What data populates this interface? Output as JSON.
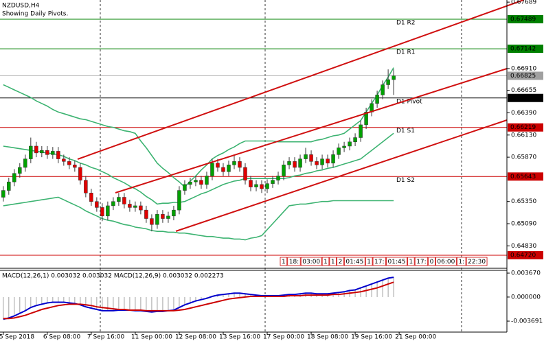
{
  "header": {
    "symbol": "NZDUSD,H4",
    "note": "Showing Daily Pivots."
  },
  "chart_data": [
    {
      "type": "candlestick",
      "xlim": [
        -0.6,
        91.6
      ],
      "ylim": [
        0.64575,
        0.67714
      ],
      "yticks": [
        0.67689,
        {
          "value": 0.6691,
          "label": "0.66910"
        },
        0.66655,
        {
          "value": 0.6639,
          "label": "0.66390"
        },
        {
          "value": 0.6613,
          "label": "0.66130"
        },
        {
          "value": 0.6587,
          "label": "0.65870"
        },
        {
          "value": 0.6535,
          "label": "0.65350"
        },
        {
          "value": 0.6509,
          "label": "0.65090"
        },
        {
          "value": 0.6483,
          "label": "0.64830"
        }
      ],
      "xticks": [
        {
          "value": 0,
          "label": "5 Sep 2018"
        },
        {
          "value": 8,
          "label": "6 Sep 08:00"
        },
        {
          "value": 16,
          "label": "7 Sep 16:00"
        },
        {
          "value": 24,
          "label": "11 Sep 00:00"
        },
        {
          "value": 32,
          "label": "12 Sep 08:00"
        },
        {
          "value": 40,
          "label": "13 Sep 16:00"
        },
        {
          "value": 48,
          "label": "17 Sep 00:00"
        },
        {
          "value": 56,
          "label": "18 Sep 08:00"
        },
        {
          "value": 64,
          "label": "19 Sep 16:00"
        },
        {
          "value": 72,
          "label": "21 Sep 00:00"
        }
      ],
      "up_color": "#00a000",
      "down_color": "#e00000",
      "wick_color": "#333333",
      "open": [
        0.654,
        0.6548,
        0.6558,
        0.6568,
        0.6575,
        0.6585,
        0.66,
        0.6592,
        0.6595,
        0.659,
        0.6594,
        0.6585,
        0.6582,
        0.6578,
        0.6575,
        0.656,
        0.6545,
        0.6535,
        0.6528,
        0.6518,
        0.653,
        0.6535,
        0.654,
        0.6532,
        0.6528,
        0.653,
        0.6525,
        0.6515,
        0.6508,
        0.652,
        0.6515,
        0.6518,
        0.6525,
        0.6548,
        0.6555,
        0.6558,
        0.656,
        0.6555,
        0.6565,
        0.658,
        0.6575,
        0.657,
        0.6578,
        0.6582,
        0.6575,
        0.656,
        0.6552,
        0.6555,
        0.655,
        0.6556,
        0.656,
        0.6565,
        0.6578,
        0.6582,
        0.6575,
        0.6585,
        0.659,
        0.6582,
        0.6578,
        0.6585,
        0.658,
        0.659,
        0.6598,
        0.66,
        0.6605,
        0.661,
        0.6625,
        0.664,
        0.665,
        0.666,
        0.6672,
        0.6678
      ],
      "high": [
        0.6553,
        0.6563,
        0.6573,
        0.658,
        0.659,
        0.661,
        0.6605,
        0.66,
        0.66,
        0.6599,
        0.6599,
        0.659,
        0.6587,
        0.6583,
        0.658,
        0.6565,
        0.655,
        0.654,
        0.6533,
        0.6535,
        0.654,
        0.6545,
        0.6545,
        0.6537,
        0.6535,
        0.6535,
        0.653,
        0.652,
        0.6525,
        0.6525,
        0.6523,
        0.653,
        0.6553,
        0.656,
        0.6563,
        0.6565,
        0.6565,
        0.657,
        0.6585,
        0.6585,
        0.658,
        0.6583,
        0.659,
        0.6587,
        0.658,
        0.6565,
        0.656,
        0.656,
        0.6561,
        0.6565,
        0.657,
        0.6583,
        0.6587,
        0.6587,
        0.659,
        0.6598,
        0.6595,
        0.6587,
        0.659,
        0.659,
        0.6595,
        0.6603,
        0.6605,
        0.661,
        0.6615,
        0.663,
        0.6645,
        0.6655,
        0.6665,
        0.6677,
        0.669,
        0.669
      ],
      "low": [
        0.6535,
        0.6543,
        0.6553,
        0.6563,
        0.657,
        0.658,
        0.6587,
        0.6587,
        0.6585,
        0.6585,
        0.658,
        0.6577,
        0.6573,
        0.657,
        0.6555,
        0.654,
        0.653,
        0.6523,
        0.6512,
        0.6513,
        0.6525,
        0.653,
        0.6527,
        0.6523,
        0.6523,
        0.652,
        0.651,
        0.65,
        0.6503,
        0.651,
        0.651,
        0.6513,
        0.652,
        0.6543,
        0.655,
        0.6553,
        0.655,
        0.655,
        0.656,
        0.657,
        0.6565,
        0.6565,
        0.6573,
        0.657,
        0.6555,
        0.6547,
        0.6547,
        0.6545,
        0.6545,
        0.6551,
        0.6555,
        0.656,
        0.6573,
        0.657,
        0.657,
        0.658,
        0.6577,
        0.6573,
        0.6573,
        0.6575,
        0.6575,
        0.6585,
        0.6593,
        0.6595,
        0.66,
        0.6605,
        0.662,
        0.6635,
        0.6645,
        0.6655,
        0.6667,
        0.666
      ],
      "close": [
        0.6548,
        0.6558,
        0.6568,
        0.6575,
        0.6585,
        0.66,
        0.6592,
        0.6595,
        0.659,
        0.6594,
        0.6585,
        0.6582,
        0.6578,
        0.6575,
        0.656,
        0.6545,
        0.6535,
        0.6528,
        0.6518,
        0.653,
        0.6535,
        0.654,
        0.6532,
        0.6528,
        0.653,
        0.6525,
        0.6515,
        0.6508,
        0.652,
        0.6515,
        0.6518,
        0.6525,
        0.6548,
        0.6555,
        0.6558,
        0.656,
        0.6555,
        0.6565,
        0.658,
        0.6575,
        0.657,
        0.6578,
        0.6582,
        0.6575,
        0.656,
        0.6552,
        0.6555,
        0.655,
        0.6556,
        0.656,
        0.6565,
        0.6578,
        0.6582,
        0.6575,
        0.6585,
        0.659,
        0.6582,
        0.6578,
        0.6585,
        0.658,
        0.659,
        0.6598,
        0.66,
        0.6605,
        0.661,
        0.6625,
        0.664,
        0.665,
        0.666,
        0.6672,
        0.6678,
        0.66825
      ],
      "bands": {
        "color": "#3cb371",
        "upper": [
          0.6672,
          0.6669,
          0.6666,
          0.6663,
          0.666,
          0.6657,
          0.6653,
          0.665,
          0.6647,
          0.6643,
          0.664,
          0.6638,
          0.6636,
          0.6634,
          0.6632,
          0.6631,
          0.6629,
          0.6627,
          0.6625,
          0.6623,
          0.6622,
          0.662,
          0.6618,
          0.6617,
          0.6615,
          0.6606,
          0.6598,
          0.6589,
          0.658,
          0.6574,
          0.6569,
          0.6563,
          0.6558,
          0.6552,
          0.6559,
          0.6565,
          0.6572,
          0.6578,
          0.6585,
          0.6589,
          0.6592,
          0.6596,
          0.6599,
          0.6603,
          0.6606,
          0.6606,
          0.6606,
          0.6606,
          0.6606,
          0.6606,
          0.6605,
          0.6605,
          0.6605,
          0.6605,
          0.6605,
          0.6605,
          0.6605,
          0.6607,
          0.6608,
          0.661,
          0.6612,
          0.6613,
          0.6615,
          0.662,
          0.6625,
          0.663,
          0.664,
          0.665,
          0.666,
          0.6671,
          0.6681,
          0.6692
        ],
        "middle": [
          0.66,
          0.6599,
          0.6598,
          0.6597,
          0.6596,
          0.6595,
          0.6594,
          0.6593,
          0.6592,
          0.6591,
          0.659,
          0.6588,
          0.6585,
          0.6583,
          0.658,
          0.6578,
          0.6575,
          0.6573,
          0.657,
          0.6567,
          0.6563,
          0.656,
          0.6557,
          0.6553,
          0.655,
          0.6546,
          0.6541,
          0.6537,
          0.6532,
          0.6533,
          0.6533,
          0.6534,
          0.6534,
          0.6535,
          0.6538,
          0.6541,
          0.6544,
          0.6546,
          0.6549,
          0.6552,
          0.6555,
          0.6557,
          0.6559,
          0.656,
          0.6562,
          0.6562,
          0.6562,
          0.6562,
          0.6562,
          0.6562,
          0.6562,
          0.6562,
          0.6563,
          0.6565,
          0.6566,
          0.6568,
          0.6569,
          0.6571,
          0.6572,
          0.6574,
          0.6575,
          0.6577,
          0.6579,
          0.6581,
          0.6583,
          0.6585,
          0.659,
          0.6595,
          0.66,
          0.6605,
          0.661,
          0.6615
        ],
        "lower": [
          0.653,
          0.6531,
          0.6532,
          0.6533,
          0.6534,
          0.6535,
          0.6536,
          0.6537,
          0.6538,
          0.6539,
          0.654,
          0.6537,
          0.6534,
          0.6531,
          0.6528,
          0.6524,
          0.6521,
          0.6518,
          0.6515,
          0.6513,
          0.6512,
          0.651,
          0.6508,
          0.6507,
          0.6505,
          0.6504,
          0.6503,
          0.6501,
          0.65,
          0.65,
          0.6499,
          0.6499,
          0.6498,
          0.6498,
          0.6497,
          0.6496,
          0.6495,
          0.6494,
          0.6494,
          0.6493,
          0.6492,
          0.6492,
          0.6491,
          0.6491,
          0.649,
          0.6492,
          0.6493,
          0.6495,
          0.6502,
          0.6509,
          0.6516,
          0.6523,
          0.653,
          0.6531,
          0.6532,
          0.6532,
          0.6533,
          0.6534,
          0.6535,
          0.6535,
          0.6536,
          0.6536,
          0.6536,
          0.6536,
          0.6536,
          0.6536,
          0.6536,
          0.6536,
          0.6536,
          0.6536,
          0.6536,
          0.6536
        ]
      },
      "levels": [
        {
          "name": "D1 R2",
          "value": 0.67489,
          "value_label": "0.67489",
          "color": "#008000"
        },
        {
          "name": "D1 R1",
          "value": 0.67142,
          "value_label": "0.67142",
          "color": "#008000"
        },
        {
          "name": "D1 Pivot",
          "value": 0.66565,
          "value_label": "0.66565",
          "color": "#000000"
        },
        {
          "name": "D1 S1",
          "value": 0.66219,
          "value_label": "0.66219",
          "color": "#cc0000"
        },
        {
          "name": "D1 S2",
          "value": 0.65643,
          "value_label": "0.65643",
          "color": "#cc0000"
        },
        {
          "value": 0.6472,
          "value_label": "0.64720",
          "color": "#cc0000"
        }
      ],
      "price": {
        "value": 0.66825,
        "value_label": "0.66825",
        "color": "#a0a0a0"
      },
      "time_boxes": [
        "1",
        "18:",
        "03:00",
        "1",
        "1",
        "2",
        "01:45",
        "1",
        "17:",
        "01:45",
        "1",
        "17:",
        "0",
        "06:00",
        "1:",
        "22:30"
      ]
    },
    {
      "type": "macd",
      "title": "MACD(12,26,1) 0.003032 0.003032 MACD(12,26,9) 0.003032 0.002273",
      "ylim": [
        -0.00516,
        0.00399
      ],
      "yticks": [
        {
          "value": 0.00367,
          "label": "0.003670"
        },
        {
          "value": 0,
          "label": "0.000000"
        },
        {
          "value": -0.003691,
          "label": "-0.003691"
        }
      ],
      "histogram_color": "#a0a0a0",
      "series": [
        {
          "color": "#0000cc",
          "values": [
            -0.0034,
            -0.0032,
            -0.0029,
            -0.0025,
            -0.0021,
            -0.0016,
            -0.0013,
            -0.0011,
            -0.0009,
            -0.0008,
            -0.0008,
            -0.0008,
            -0.0009,
            -0.001,
            -0.0012,
            -0.0015,
            -0.0017,
            -0.0019,
            -0.0021,
            -0.0021,
            -0.0021,
            -0.002,
            -0.002,
            -0.002,
            -0.0021,
            -0.0021,
            -0.0022,
            -0.0023,
            -0.0022,
            -0.0022,
            -0.0021,
            -0.002,
            -0.0016,
            -0.0012,
            -0.0009,
            -0.0006,
            -0.0004,
            -0.0002,
            0.0001,
            0.0003,
            0.0004,
            0.0005,
            0.0006,
            0.0006,
            0.0005,
            0.0004,
            0.0003,
            0.0002,
            0.0002,
            0.0002,
            0.0002,
            0.0003,
            0.0004,
            0.0004,
            0.0005,
            0.0006,
            0.0006,
            0.0005,
            0.0005,
            0.0005,
            0.0006,
            0.0007,
            0.0008,
            0.001,
            0.0011,
            0.0014,
            0.0017,
            0.002,
            0.0023,
            0.0026,
            0.0029,
            0.003032
          ]
        },
        {
          "color": "#cc0000",
          "values": [
            -0.0033,
            -0.0033,
            -0.0032,
            -0.003,
            -0.0028,
            -0.0025,
            -0.0022,
            -0.0019,
            -0.0017,
            -0.0015,
            -0.0013,
            -0.0012,
            -0.0011,
            -0.0011,
            -0.0011,
            -0.0012,
            -0.0013,
            -0.0015,
            -0.0016,
            -0.0017,
            -0.0018,
            -0.0019,
            -0.0019,
            -0.002,
            -0.002,
            -0.002,
            -0.0021,
            -0.0021,
            -0.0021,
            -0.0021,
            -0.0021,
            -0.0021,
            -0.002,
            -0.0019,
            -0.0017,
            -0.0015,
            -0.0013,
            -0.0011,
            -0.0009,
            -0.0007,
            -0.0005,
            -0.0003,
            -0.0002,
            -0.0001,
            0.0,
            0.0001,
            0.0001,
            0.0001,
            0.0001,
            0.0001,
            0.0001,
            0.0001,
            0.0002,
            0.0002,
            0.0002,
            0.0003,
            0.0003,
            0.0003,
            0.0003,
            0.0003,
            0.0004,
            0.0004,
            0.0005,
            0.0006,
            0.0007,
            0.0008,
            0.001,
            0.0012,
            0.0014,
            0.0017,
            0.002,
            0.002273
          ]
        }
      ]
    }
  ]
}
